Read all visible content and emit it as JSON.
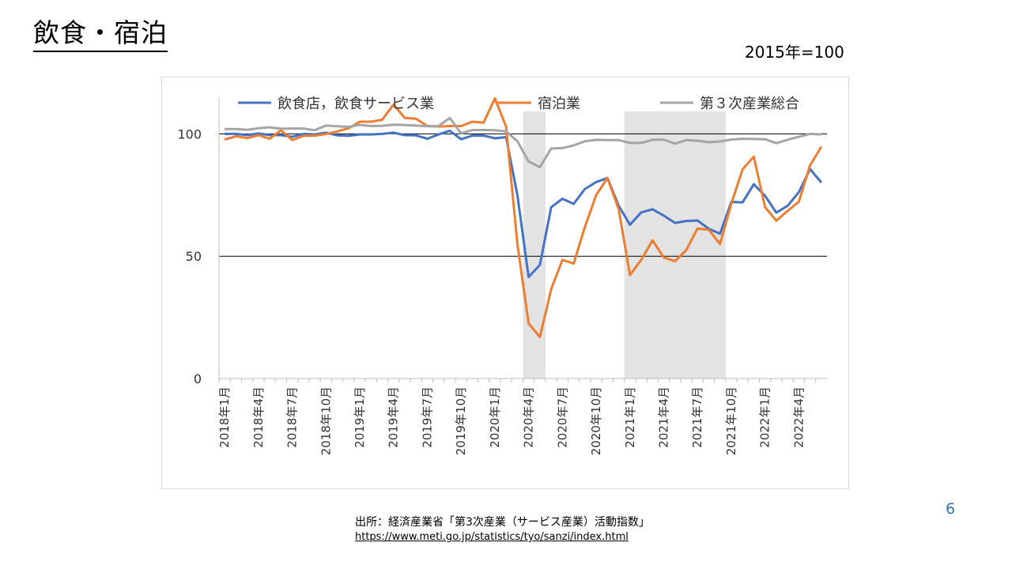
{
  "slide": {
    "title": "飲食・宿泊",
    "base_note": "2015年=100",
    "source_label": "出所：経済産業省「第3次産業（サービス産業）活動指数」",
    "source_url": "https://www.meti.go.jp/statistics/tyo/sanzi/index.html",
    "page_number": "6"
  },
  "chart_data": {
    "type": "line",
    "title": "",
    "xlabel": "",
    "ylabel": "",
    "ylim": [
      0,
      115
    ],
    "yticks": [
      0,
      50,
      100
    ],
    "grid": "horizontal at 50 and 100",
    "legend": "top",
    "x": [
      "2018年1月",
      "2018年2月",
      "2018年3月",
      "2018年4月",
      "2018年5月",
      "2018年6月",
      "2018年7月",
      "2018年8月",
      "2018年9月",
      "2018年10月",
      "2018年11月",
      "2018年12月",
      "2019年1月",
      "2019年2月",
      "2019年3月",
      "2019年4月",
      "2019年5月",
      "2019年6月",
      "2019年7月",
      "2019年8月",
      "2019年9月",
      "2019年10月",
      "2019年11月",
      "2019年12月",
      "2020年1月",
      "2020年2月",
      "2020年3月",
      "2020年4月",
      "2020年5月",
      "2020年6月",
      "2020年7月",
      "2020年8月",
      "2020年9月",
      "2020年10月",
      "2020年11月",
      "2020年12月",
      "2021年1月",
      "2021年2月",
      "2021年3月",
      "2021年4月",
      "2021年5月",
      "2021年6月",
      "2021年7月",
      "2021年8月",
      "2021年9月",
      "2021年10月",
      "2021年11月",
      "2021年12月",
      "2022年1月",
      "2022年2月",
      "2022年3月",
      "2022年4月",
      "2022年5月",
      "2022年6月"
    ],
    "tick_labels": [
      "2018年1月",
      "2018年4月",
      "2018年7月",
      "2018年10月",
      "2019年1月",
      "2019年4月",
      "2019年7月",
      "2019年10月",
      "2020年1月",
      "2020年4月",
      "2020年7月",
      "2020年10月",
      "2021年1月",
      "2021年4月",
      "2021年7月",
      "2021年10月",
      "2022年1月",
      "2022年4月"
    ],
    "shaded_periods": [
      {
        "start": "2020年4月",
        "end": "2020年5月"
      },
      {
        "start": "2021年1月",
        "end": "2021年3月"
      },
      {
        "start": "2021年4月",
        "end": "2021年9月"
      }
    ],
    "series": [
      {
        "name": "飲食店，飲食サービス業",
        "color": "#4472c4",
        "values": [
          100,
          100,
          99.5,
          100.2,
          99.5,
          99.5,
          98.8,
          100,
          99.8,
          100.5,
          99.4,
          99.2,
          99.8,
          99.8,
          100,
          100.5,
          99.5,
          99.4,
          98,
          99.8,
          101.3,
          97.8,
          99.3,
          99.3,
          98.2,
          98.7,
          75,
          41.5,
          46.5,
          70,
          73.5,
          71.4,
          77.5,
          80.3,
          82,
          70.6,
          62.9,
          67.9,
          69.2,
          66.6,
          63.6,
          64.4,
          64.6,
          61.2,
          59.2,
          72.2,
          72,
          79.4,
          74.7,
          67.8,
          70.6,
          76.2,
          85.6,
          80.1
        ]
      },
      {
        "name": "宿泊業",
        "color": "#ed7d31",
        "values": [
          97.7,
          99,
          98.3,
          99.5,
          98,
          101.5,
          97.5,
          99.2,
          99.3,
          99.9,
          101,
          102.3,
          105,
          105,
          105.8,
          112,
          106.5,
          106.2,
          103.2,
          103,
          103.2,
          103.2,
          105,
          104.6,
          114.5,
          103,
          55,
          22.5,
          17,
          36.5,
          48.5,
          47,
          62,
          75,
          82,
          69.3,
          42.3,
          48.5,
          56.5,
          49.5,
          48,
          52.5,
          61.3,
          60.8,
          55,
          71.5,
          85.5,
          90.7,
          70,
          64.5,
          68.5,
          72.3,
          87.2,
          94.8
        ]
      },
      {
        "name": "第３次産業総合",
        "color": "#a5a5a5",
        "values": [
          102,
          102,
          101.7,
          102.3,
          102.7,
          102.1,
          102.2,
          102.2,
          101.5,
          103.4,
          103.1,
          102.9,
          103.7,
          103.2,
          103.3,
          103.8,
          103.6,
          103.4,
          103.1,
          103.2,
          106.5,
          100.2,
          101.6,
          101.6,
          101.5,
          101,
          97,
          88.7,
          86.4,
          94,
          94.2,
          95.3,
          97,
          97.6,
          97.5,
          97.5,
          96.3,
          96.3,
          97.6,
          97.7,
          96,
          97.5,
          97.2,
          96.6,
          96.9,
          97.7,
          98,
          97.9,
          97.8,
          96.2,
          97.6,
          98.8,
          100,
          99.8
        ]
      }
    ]
  }
}
